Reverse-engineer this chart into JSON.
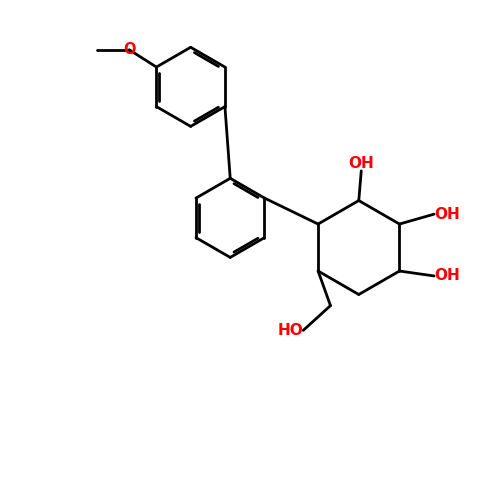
{
  "bg_color": "#ffffff",
  "bond_color": "#000000",
  "oh_color": "#ff0000",
  "line_width": 2.0,
  "dbo": 0.055,
  "figsize": [
    5.0,
    5.0
  ],
  "dpi": 100,
  "xlim": [
    0.0,
    10.0
  ],
  "ylim": [
    0.5,
    10.5
  ]
}
